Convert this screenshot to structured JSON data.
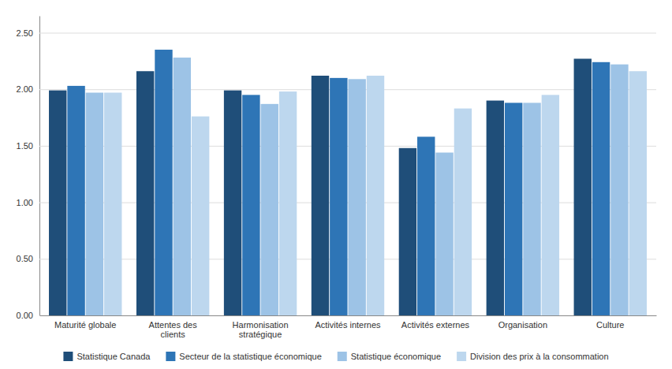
{
  "chart_data": {
    "type": "bar",
    "categories": [
      "Maturité globale",
      "Attentes des\nclients",
      "Harmonisation\nstratégique",
      "Activités internes",
      "Activités externes",
      "Organisation",
      "Culture"
    ],
    "series": [
      {
        "name": "Statistique Canada",
        "color": "#1F4E79",
        "values": [
          1.99,
          2.16,
          1.99,
          2.12,
          1.48,
          1.9,
          2.27
        ]
      },
      {
        "name": "Secteur de la statistique économique",
        "color": "#2E75B6",
        "values": [
          2.03,
          2.35,
          1.95,
          2.1,
          1.58,
          1.88,
          2.24
        ]
      },
      {
        "name": "Statistique économique",
        "color": "#9DC3E6",
        "values": [
          1.97,
          2.28,
          1.87,
          2.09,
          1.44,
          1.88,
          2.22
        ]
      },
      {
        "name": "Division des prix à la consommation",
        "color": "#BDD7EE",
        "values": [
          1.97,
          1.76,
          1.98,
          2.12,
          1.83,
          1.95,
          2.16
        ]
      }
    ],
    "ylim": [
      0,
      2.65
    ],
    "yticks": [
      {
        "value": 0.0,
        "label": "0.00"
      },
      {
        "value": 0.5,
        "label": "0.50"
      },
      {
        "value": 1.0,
        "label": "1.00"
      },
      {
        "value": 1.5,
        "label": "1.50"
      },
      {
        "value": 2.0,
        "label": "2.00"
      },
      {
        "value": 2.5,
        "label": "2.50"
      }
    ],
    "grid": true,
    "legend": "bottom"
  }
}
